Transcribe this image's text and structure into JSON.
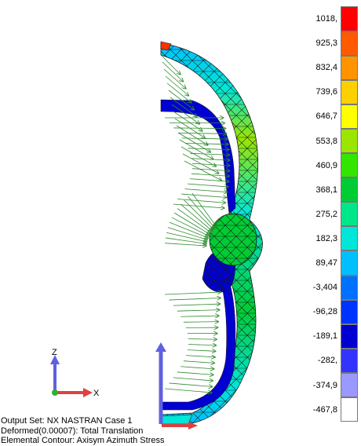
{
  "legend": {
    "labels": [
      "1018,",
      "925,3",
      "832,4",
      "739,6",
      "646,7",
      "553,8",
      "460,9",
      "368,1",
      "275,2",
      "182,3",
      "89,47",
      "-3,404",
      "-96,28",
      "-189,1",
      "-282,",
      "-374,9",
      "-467,8"
    ],
    "colors": [
      "#ff0000",
      "#ff5a00",
      "#ff9400",
      "#ffd000",
      "#ffff00",
      "#9ae600",
      "#33e600",
      "#00cc33",
      "#00e68a",
      "#00e6d8",
      "#00bfff",
      "#0070ff",
      "#0033ff",
      "#0000d0",
      "#3333ff",
      "#9999ff",
      "#ffffff"
    ]
  },
  "triad": {
    "z_label": "Z",
    "x_label": "X"
  },
  "info": {
    "output_set": "Output Set: NX NASTRAN Case 1",
    "deformed": "Deformed(0.00007): Total Translation",
    "contour": "Elemental Contour: Axisym Azimuth Stress"
  },
  "colors": {
    "mesh_line": "#1a1a1a",
    "vector_arrow": "#2e8b2e",
    "triad_x": "#e04040",
    "triad_y": "#30b030",
    "triad_z": "#6060e0",
    "constraint_arrow": "#6060e0"
  }
}
